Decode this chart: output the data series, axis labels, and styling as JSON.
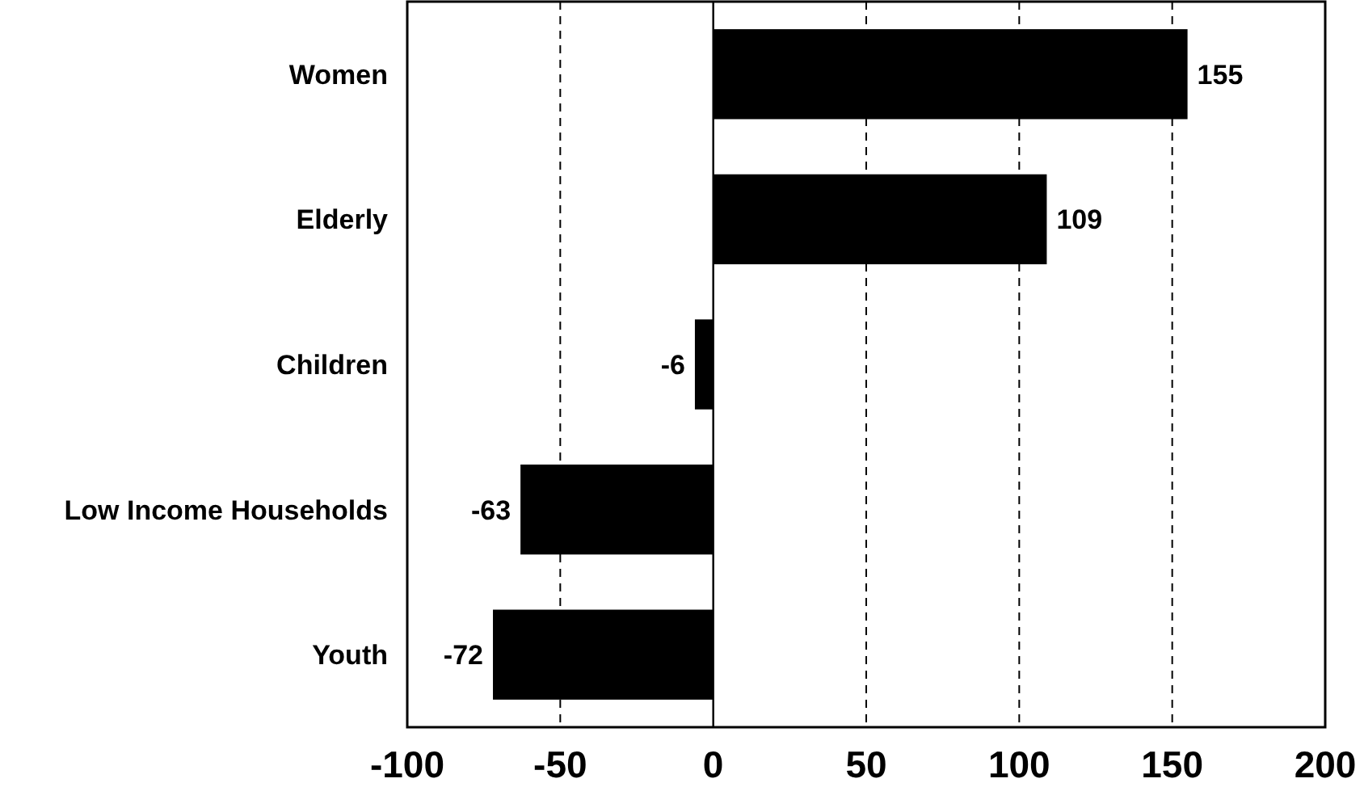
{
  "chart_data": {
    "type": "bar",
    "orientation": "horizontal",
    "categories": [
      "Women",
      "Elderly",
      "Children",
      "Low Income Households",
      "Youth"
    ],
    "values": [
      155,
      109,
      -6,
      -63,
      -72
    ],
    "color": "#000000",
    "xlim": [
      -100,
      200
    ],
    "xticks": [
      -100,
      -50,
      0,
      50,
      100,
      150,
      200
    ],
    "grid": "x",
    "data_labels": true
  }
}
